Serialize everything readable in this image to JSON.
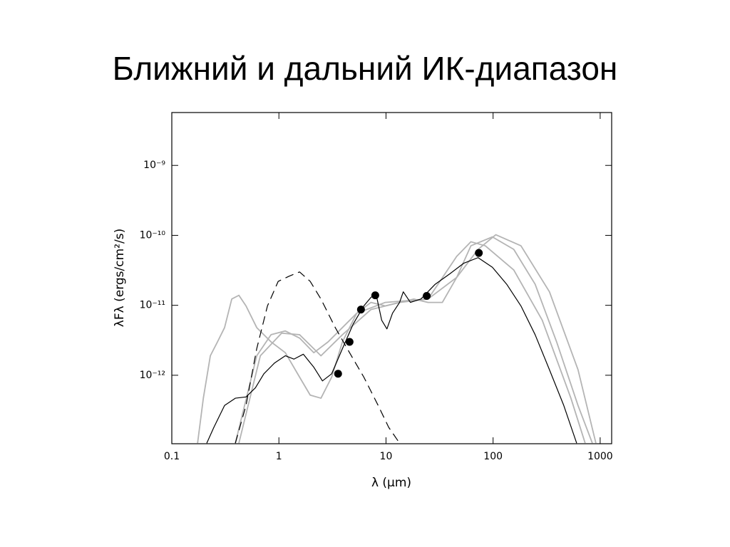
{
  "title": "Ближний и дальний ИК-диапазон",
  "chart_data": {
    "type": "line",
    "x_label": "λ (μm)",
    "y_label": "λFλ (ergs/cm²/s)",
    "xscale": "log",
    "yscale": "log",
    "xlim": [
      0.1,
      1280
    ],
    "ylim": [
      1.05e-13,
      5.7e-09
    ],
    "xticks": [
      0.1,
      1,
      10,
      100,
      1000
    ],
    "yticks": [
      {
        "value": 1e-09,
        "label": "10⁻⁹"
      },
      {
        "value": 1e-10,
        "label": "10⁻¹⁰"
      },
      {
        "value": 1e-11,
        "label": "10⁻¹¹"
      },
      {
        "value": 1e-12,
        "label": "10⁻¹²"
      }
    ],
    "series": [
      {
        "style": "line",
        "color": "#b4b4b4",
        "x": [
          0.174,
          0.197,
          0.229,
          0.267,
          0.311,
          0.363,
          0.423,
          0.493,
          0.621,
          0.845,
          1.148,
          1.56,
          1.96,
          2.47,
          3.11,
          3.92,
          5.33,
          7.24,
          9.85,
          13.4,
          18.2,
          24.7,
          33.6,
          45.7,
          62.1,
          98.5,
          156,
          247,
          392,
          621,
          845
        ],
        "values": [
          1.07e-13,
          4.7e-13,
          1.9e-12,
          3e-12,
          4.8e-12,
          1.23e-11,
          1.39e-11,
          9.8e-12,
          4.8e-12,
          3e-12,
          2.1e-12,
          9.4e-13,
          5.2e-13,
          4.7e-13,
          9.4e-13,
          3e-12,
          7.7e-12,
          1.1e-11,
          9.8e-12,
          1.1e-11,
          1.23e-11,
          1.1e-11,
          1.1e-11,
          2.5e-11,
          7.1e-11,
          9.5e-11,
          6.3e-11,
          2e-11,
          3e-12,
          3.7e-13,
          1.07e-13
        ]
      },
      {
        "style": "line",
        "color": "#b4b4b4",
        "x": [
          0.392,
          0.621,
          0.845,
          1.148,
          1.56,
          2.12,
          2.88,
          5.33,
          9.85,
          24.7,
          45.7,
          62.1,
          84.5,
          156,
          288,
          533,
          724
        ],
        "values": [
          1.07e-13,
          1.9e-12,
          3.8e-12,
          4.3e-12,
          3.4e-12,
          2.1e-12,
          3e-12,
          7.7e-12,
          1.1e-11,
          1.23e-11,
          5e-11,
          8.1e-11,
          7.1e-11,
          3.2e-11,
          6.1e-12,
          4.7e-13,
          1.07e-13
        ]
      },
      {
        "style": "line",
        "color": "#b4b4b4",
        "x": [
          0.423,
          0.671,
          1.06,
          1.56,
          2.47,
          3.92,
          7.24,
          13.4,
          24.7,
          45.7,
          72.4,
          106,
          182,
          336,
          621,
          912
        ],
        "values": [
          1.07e-13,
          1.9e-12,
          4e-12,
          3.8e-12,
          1.9e-12,
          3.8e-12,
          8.7e-12,
          1.1e-11,
          1.23e-11,
          2.5e-11,
          6.3e-11,
          1.02e-10,
          7.1e-11,
          1.56e-11,
          1.2e-12,
          1.07e-13
        ]
      },
      {
        "style": "dashed",
        "color": "#000000",
        "x": [
          0.392,
          0.493,
          0.621,
          0.782,
          0.985,
          1.24,
          1.56,
          1.96,
          2.47,
          3.36,
          4.57,
          6.21,
          8.45,
          10.6,
          13.4
        ],
        "values": [
          1.07e-13,
          3.7e-13,
          2.4e-12,
          9.8e-12,
          2.2e-11,
          2.6e-11,
          3e-11,
          2.2e-11,
          1.23e-11,
          4.8e-12,
          2.1e-12,
          9.4e-13,
          3.7e-13,
          1.8e-13,
          1.07e-13
        ]
      },
      {
        "style": "line",
        "color": "#000000",
        "x": [
          0.212,
          0.247,
          0.311,
          0.392,
          0.493,
          0.603,
          0.724,
          0.912,
          1.148,
          1.38,
          1.69,
          2.12,
          2.55,
          3.11,
          3.92,
          4.94,
          6.21,
          7.24,
          8.07,
          9.12,
          10.2,
          11.5,
          13.4,
          14.5,
          16.9,
          21.2,
          28.8,
          39.2,
          53.3,
          72.4,
          98.5,
          134,
          182,
          247,
          336,
          457,
          603
        ],
        "values": [
          1.07e-13,
          1.8e-13,
          3.7e-13,
          4.7e-13,
          4.9e-13,
          6.6e-13,
          1.05e-12,
          1.5e-12,
          1.9e-12,
          1.7e-12,
          2e-12,
          1.3e-12,
          8.3e-13,
          1.05e-12,
          2.4e-12,
          5.4e-12,
          9.8e-12,
          1.3e-11,
          1.45e-11,
          6.1e-12,
          4.6e-12,
          7.7e-12,
          1.1e-11,
          1.56e-11,
          1.1e-11,
          1.23e-11,
          2e-11,
          2.8e-11,
          4e-11,
          4.8e-11,
          3.5e-11,
          2e-11,
          9.8e-12,
          3.8e-12,
          1.2e-12,
          3.7e-13,
          1.07e-13
        ]
      },
      {
        "style": "points",
        "color": "#000000",
        "x": [
          3.57,
          4.57,
          5.84,
          7.94,
          24,
          73.6
        ],
        "values": [
          1.05e-12,
          3e-12,
          8.7e-12,
          1.39e-11,
          1.36e-11,
          5.6e-11
        ]
      }
    ]
  }
}
